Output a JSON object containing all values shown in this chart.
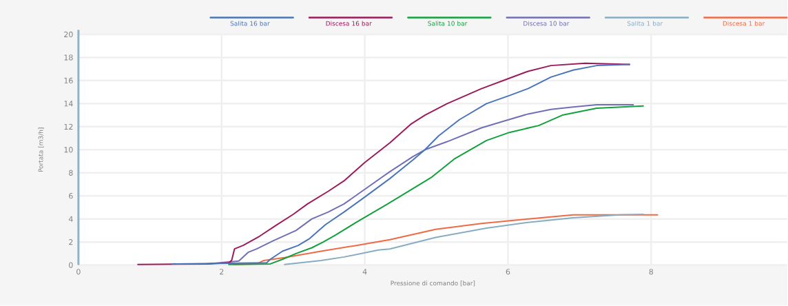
{
  "chart_data": {
    "type": "line",
    "xlabel": "Pressione di comando [bar]",
    "ylabel": "Portata [m3/h]",
    "xlim": [
      0,
      9.9
    ],
    "ylim": [
      0,
      20
    ],
    "xticks": [
      0,
      2,
      4,
      6,
      8
    ],
    "yticks": [
      0,
      2,
      4,
      6,
      8,
      10,
      12,
      14,
      16,
      18,
      20
    ],
    "grid": true,
    "legend": "top",
    "series": [
      {
        "name": "Salita 16 bar",
        "color": "#4a74b8",
        "x": [
          1.31,
          2.1,
          2.63,
          2.68,
          2.85,
          3.07,
          3.23,
          3.45,
          3.71,
          4.0,
          4.35,
          4.67,
          4.84,
          5.03,
          5.32,
          5.7,
          6.02,
          6.28,
          6.6,
          6.91,
          7.24,
          7.7
        ],
        "values": [
          0.1,
          0.15,
          0.2,
          0.5,
          1.2,
          1.7,
          2.3,
          3.5,
          4.6,
          5.9,
          7.5,
          9.1,
          10.0,
          11.2,
          12.6,
          14.0,
          14.7,
          15.3,
          16.3,
          16.9,
          17.3,
          17.4
        ]
      },
      {
        "name": "Discesa 16 bar",
        "color": "#9b1b5a",
        "x": [
          0.83,
          1.79,
          2.1,
          2.14,
          2.18,
          2.3,
          2.53,
          2.75,
          3.0,
          3.2,
          3.49,
          3.71,
          4.0,
          4.35,
          4.64,
          4.84,
          5.15,
          5.63,
          6.02,
          6.28,
          6.6,
          7.08,
          7.7
        ],
        "values": [
          0.05,
          0.1,
          0.2,
          0.4,
          1.4,
          1.7,
          2.5,
          3.4,
          4.4,
          5.3,
          6.4,
          7.3,
          8.9,
          10.6,
          12.2,
          13.0,
          14.0,
          15.3,
          16.2,
          16.8,
          17.3,
          17.5,
          17.4
        ]
      },
      {
        "name": "Salita 10 bar",
        "color": "#12a03c",
        "x": [
          2.1,
          2.68,
          2.85,
          3.04,
          3.26,
          3.42,
          3.59,
          3.88,
          4.32,
          4.93,
          5.25,
          5.7,
          6.02,
          6.43,
          6.76,
          7.24,
          7.89
        ],
        "values": [
          0.05,
          0.1,
          0.5,
          1.0,
          1.5,
          2.0,
          2.6,
          3.7,
          5.3,
          7.6,
          9.2,
          10.8,
          11.5,
          12.1,
          13.0,
          13.6,
          13.8
        ]
      },
      {
        "name": "Discesa 10 bar",
        "color": "#6f6fb5",
        "x": [
          1.31,
          1.79,
          2.24,
          2.37,
          2.49,
          2.72,
          3.04,
          3.26,
          3.49,
          3.71,
          4.03,
          4.35,
          4.67,
          4.84,
          5.15,
          5.63,
          5.95,
          6.28,
          6.6,
          6.91,
          7.24,
          7.75
        ],
        "values": [
          0.1,
          0.1,
          0.35,
          1.1,
          1.4,
          2.1,
          3.0,
          4.0,
          4.6,
          5.3,
          6.7,
          8.1,
          9.4,
          10.0,
          10.7,
          11.9,
          12.5,
          13.1,
          13.5,
          13.7,
          13.9,
          13.9
        ]
      },
      {
        "name": "Salita 1 bar",
        "color": "#86acc2",
        "x": [
          2.88,
          3.39,
          3.71,
          4.19,
          4.35,
          4.99,
          5.7,
          6.28,
          6.91,
          7.56,
          7.89
        ],
        "values": [
          0.05,
          0.4,
          0.7,
          1.3,
          1.4,
          2.4,
          3.2,
          3.7,
          4.1,
          4.35,
          4.4
        ]
      },
      {
        "name": "Discesa 1 bar",
        "color": "#ef6a44",
        "x": [
          2.17,
          2.49,
          2.59,
          2.88,
          3.39,
          3.88,
          4.35,
          4.99,
          5.63,
          6.28,
          6.91,
          8.09
        ],
        "values": [
          0.05,
          0.1,
          0.4,
          0.65,
          1.2,
          1.7,
          2.2,
          3.1,
          3.6,
          4.0,
          4.35,
          4.35
        ]
      }
    ]
  }
}
